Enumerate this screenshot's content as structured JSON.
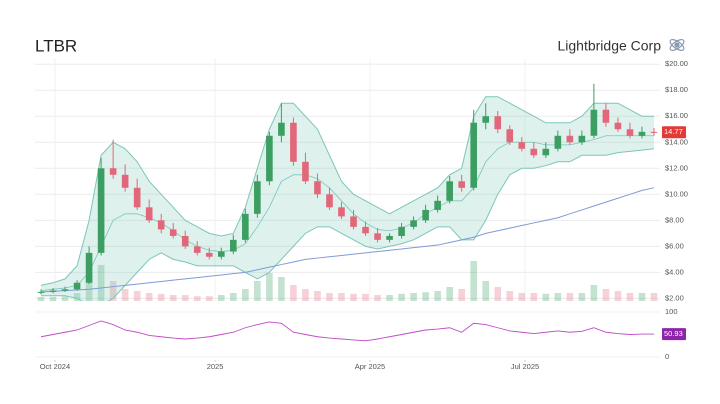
{
  "chart_data": [
    {
      "type": "candlestick",
      "title": "LTBR",
      "subtitle": "Lightbridge Corp",
      "categories": [
        null,
        null,
        null,
        null,
        null,
        null,
        null,
        null,
        null,
        null,
        null,
        null,
        null,
        null,
        null,
        null,
        null,
        null,
        null,
        null,
        null,
        null,
        null,
        null,
        null,
        null,
        null,
        null,
        null,
        null,
        null,
        null,
        null,
        null,
        null,
        null,
        null,
        null,
        null,
        null,
        null,
        null,
        null,
        null,
        null,
        null,
        null,
        null,
        null,
        null,
        null,
        null
      ],
      "open": [
        2.45,
        2.5,
        2.6,
        2.7,
        3.2,
        5.5,
        12.0,
        11.5,
        10.5,
        9.0,
        8.0,
        7.3,
        6.8,
        6.0,
        5.5,
        5.2,
        5.6,
        6.5,
        8.5,
        11.0,
        14.5,
        15.5,
        12.5,
        11.0,
        10.0,
        9.0,
        8.3,
        7.5,
        7.0,
        6.5,
        6.8,
        7.5,
        8.0,
        8.8,
        9.5,
        11.0,
        10.5,
        15.5,
        16.0,
        15.0,
        14.0,
        13.5,
        13.0,
        13.5,
        14.5,
        14.0,
        14.5,
        16.5,
        15.5,
        15.0,
        14.5,
        14.8
      ],
      "high": [
        2.7,
        2.8,
        2.9,
        3.4,
        6.0,
        12.8,
        14.2,
        12.3,
        11.2,
        9.6,
        8.5,
        7.8,
        7.2,
        6.4,
        5.9,
        5.9,
        6.9,
        8.9,
        11.5,
        14.8,
        17.0,
        15.9,
        13.2,
        11.6,
        10.5,
        9.4,
        8.8,
        7.9,
        7.4,
        7.0,
        7.8,
        8.3,
        9.2,
        9.9,
        11.4,
        11.5,
        16.5,
        17.0,
        16.4,
        15.3,
        14.4,
        14.0,
        14.0,
        14.9,
        15.0,
        14.9,
        18.5,
        17.0,
        15.9,
        15.5,
        15.2,
        15.1
      ],
      "low": [
        2.3,
        2.4,
        2.5,
        2.6,
        3.1,
        5.3,
        11.2,
        10.2,
        8.8,
        7.8,
        7.0,
        6.6,
        5.8,
        5.3,
        5.0,
        5.0,
        5.4,
        6.3,
        8.2,
        10.7,
        14.0,
        12.2,
        10.8,
        9.7,
        8.8,
        8.1,
        7.3,
        6.8,
        6.3,
        6.3,
        6.6,
        7.3,
        7.8,
        8.6,
        9.3,
        10.2,
        10.3,
        15.0,
        14.7,
        13.8,
        13.3,
        12.8,
        12.8,
        13.3,
        13.8,
        13.8,
        14.3,
        15.2,
        14.8,
        14.3,
        14.3,
        14.5
      ],
      "close": [
        2.5,
        2.6,
        2.7,
        3.2,
        5.5,
        12.0,
        11.5,
        10.5,
        9.0,
        8.0,
        7.3,
        6.8,
        6.0,
        5.5,
        5.2,
        5.6,
        6.5,
        8.5,
        11.0,
        14.5,
        15.5,
        12.5,
        11.0,
        10.0,
        9.0,
        8.3,
        7.5,
        7.0,
        6.5,
        6.8,
        7.5,
        8.0,
        8.8,
        9.5,
        11.0,
        10.5,
        15.5,
        16.0,
        15.0,
        14.0,
        13.5,
        13.0,
        13.5,
        14.5,
        14.0,
        14.5,
        16.5,
        15.5,
        15.0,
        14.5,
        14.8,
        14.77
      ],
      "band_upper": [
        3,
        3.2,
        3.5,
        4.5,
        8,
        13,
        14,
        13.5,
        12.5,
        11,
        10,
        9,
        8,
        7.5,
        7,
        6.8,
        7,
        9,
        12,
        15,
        17,
        17,
        16,
        15,
        13,
        11,
        10,
        9.5,
        9,
        8.5,
        9,
        9.5,
        10,
        10.5,
        11.5,
        12,
        16,
        17.5,
        17.5,
        17,
        16.5,
        16,
        15.5,
        15.5,
        15.5,
        16,
        17,
        17,
        17,
        16.5,
        16,
        16
      ],
      "band_lower": [
        2.2,
        2.2,
        2.2,
        2.0,
        1.5,
        1.5,
        2,
        3,
        4,
        5,
        5.5,
        5,
        4.8,
        4.5,
        4.5,
        4.5,
        4.5,
        4,
        3.5,
        4,
        5,
        6,
        7,
        7.5,
        7.5,
        7,
        6.5,
        6,
        5.8,
        6,
        6.2,
        6.5,
        7,
        7.5,
        7.5,
        6.5,
        6.5,
        8,
        10,
        11.5,
        12,
        12,
        12.2,
        12.5,
        12.5,
        13,
        13,
        13,
        13.2,
        13.3,
        13.4,
        13.5
      ],
      "band_middle": [
        2.6,
        2.7,
        2.8,
        3,
        4,
        6,
        8,
        8.5,
        8.5,
        8.2,
        7.8,
        7.2,
        6.5,
        6,
        5.7,
        5.6,
        5.7,
        6.2,
        7.5,
        9,
        11,
        11.5,
        11.5,
        11.2,
        10.5,
        9.5,
        8.5,
        7.8,
        7.3,
        7.2,
        7.4,
        7.8,
        8.5,
        9,
        9.5,
        9.5,
        10.5,
        12.5,
        13.5,
        14,
        14,
        14,
        13.8,
        13.8,
        13.8,
        14,
        14.2,
        14.5,
        14.5,
        14.5,
        14.5,
        14.5
      ],
      "moving_average": [
        2.5,
        2.55,
        2.6,
        2.65,
        2.7,
        2.8,
        2.9,
        3.0,
        3.1,
        3.2,
        3.3,
        3.4,
        3.5,
        3.6,
        3.7,
        3.8,
        3.9,
        4.0,
        4.2,
        4.4,
        4.6,
        4.8,
        5.0,
        5.1,
        5.2,
        5.3,
        5.4,
        5.5,
        5.6,
        5.7,
        5.8,
        5.9,
        6.0,
        6.1,
        6.3,
        6.5,
        6.7,
        7.0,
        7.2,
        7.4,
        7.6,
        7.8,
        8.0,
        8.2,
        8.5,
        8.8,
        9.1,
        9.4,
        9.7,
        10.0,
        10.3,
        10.5
      ],
      "volume": [
        1,
        1,
        1.2,
        2,
        6,
        9,
        5,
        3,
        2.5,
        2,
        1.8,
        1.5,
        1.5,
        1.2,
        1.2,
        1.5,
        2,
        3,
        5,
        7,
        6,
        4,
        3,
        2.5,
        2,
        2,
        1.8,
        1.8,
        1.5,
        1.5,
        1.8,
        2,
        2.2,
        2.5,
        3.5,
        3,
        10,
        5,
        3.5,
        2.5,
        2,
        2,
        1.8,
        2,
        2,
        2,
        4,
        3,
        2.5,
        2,
        2,
        2
      ],
      "up_color": "#3c9e62",
      "down_color": "#e2677a",
      "band_color": "#7cc6b8",
      "ma_color": "#7f9bd6",
      "last_color": "#e53935",
      "xlim": [
        -0.5,
        51.5
      ],
      "xticks": [
        {
          "value": 1.16,
          "label": "Oct 2024"
        },
        {
          "value": 14.48,
          "label": "2025"
        },
        {
          "value": 27.37,
          "label": "Apr 2025"
        },
        {
          "value": 40.27,
          "label": "Jul 2025"
        }
      ],
      "ylim": [
        1.8,
        20.4
      ],
      "yticks": [
        {
          "value": 2,
          "label": "$2.00"
        },
        {
          "value": 4,
          "label": "$4.00"
        },
        {
          "value": 6,
          "label": "$6.00"
        },
        {
          "value": 8,
          "label": "$8.00"
        },
        {
          "value": 10,
          "label": "$10.00"
        },
        {
          "value": 12,
          "label": "$12.00"
        },
        {
          "value": 14,
          "label": "$14.00"
        },
        {
          "value": 16,
          "label": "$16.00"
        },
        {
          "value": 18,
          "label": "$18.00"
        },
        {
          "value": 20,
          "label": "$20.00"
        }
      ],
      "grid": true
    },
    {
      "type": "line",
      "values": [
        45,
        50,
        55,
        60,
        70,
        80,
        72,
        60,
        55,
        48,
        45,
        42,
        40,
        42,
        45,
        50,
        55,
        65,
        72,
        78,
        75,
        55,
        50,
        45,
        42,
        40,
        38,
        36,
        40,
        45,
        50,
        55,
        60,
        62,
        65,
        55,
        75,
        72,
        65,
        58,
        55,
        52,
        55,
        58,
        55,
        57,
        65,
        55,
        52,
        50,
        51,
        50.93
      ],
      "color": "#c04ac8",
      "last_color": "#8e24aa",
      "ylim": [
        0,
        100
      ],
      "yticks": [
        0,
        100
      ]
    }
  ]
}
